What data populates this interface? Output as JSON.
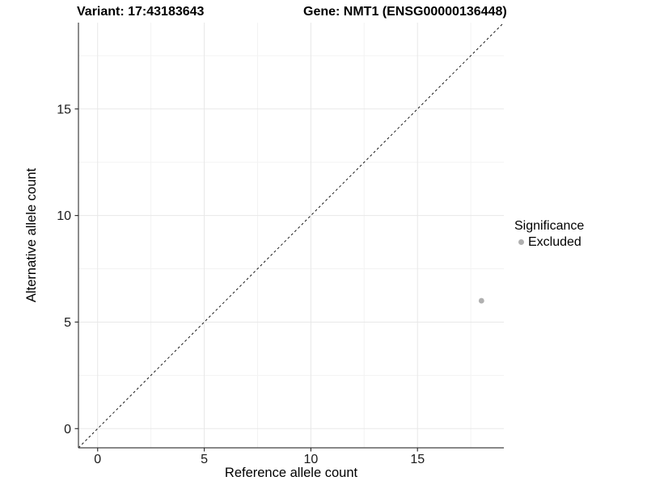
{
  "figure": {
    "title_variant": "Variant: 17:43183643",
    "title_gene": "Gene: NMT1 (ENSG00000136448)"
  },
  "chart_data": {
    "type": "scatter",
    "titles": [
      "Variant: 17:43183643",
      "Gene: NMT1 (ENSG00000136448)"
    ],
    "xlabel": "Reference allele count",
    "ylabel": "Alternative allele count",
    "xlim": [
      -0.9,
      19.05
    ],
    "ylim": [
      -0.9,
      19.05
    ],
    "x_ticks": [
      0,
      5,
      10,
      15
    ],
    "y_ticks": [
      0,
      5,
      10,
      15
    ],
    "x_minor_ticks": [
      2.5,
      7.5,
      12.5,
      17.5
    ],
    "y_minor_ticks": [
      2.5,
      7.5,
      12.5,
      17.5
    ],
    "grid": "major+minor",
    "identity_line": {
      "shown": true,
      "style": "dashed",
      "from": -0.9,
      "to": 19.05
    },
    "series": [
      {
        "name": "Excluded",
        "color": "#b0b0b0",
        "points": [
          {
            "x": 18,
            "y": 6
          }
        ]
      }
    ],
    "legend": {
      "title": "Significance",
      "position": "right",
      "items": [
        {
          "label": "Excluded",
          "marker_color": "#b0b0b0"
        }
      ]
    },
    "colors": {
      "background": "#ffffff",
      "axis_line": "#404040",
      "tick_mark": "#333333",
      "tick_label": "#1a1a1a",
      "axis_title": "#000000",
      "grid_major": "#e8e8e8",
      "grid_minor": "#f3f3f3",
      "dashed_line": "#1a1a1a",
      "point": "#b0b0b0"
    }
  }
}
